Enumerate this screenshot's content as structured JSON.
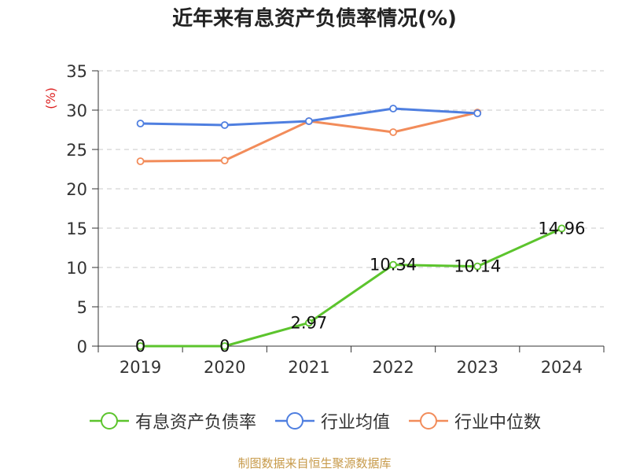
{
  "chart_data": {
    "type": "line",
    "title": "近年来有息资产负债率情况(%)",
    "ylabel": "(%)",
    "xlabel": "",
    "ylim": [
      0,
      35
    ],
    "yticks": [
      0,
      5,
      10,
      15,
      20,
      25,
      30,
      35
    ],
    "categories": [
      "2019",
      "2020",
      "2021",
      "2022",
      "2023",
      "2024"
    ],
    "grid": true,
    "legend_position": "bottom",
    "series": [
      {
        "name": "有息资产负债率",
        "color": "#5cc42d",
        "values": [
          0,
          0,
          2.97,
          10.34,
          10.14,
          14.96
        ],
        "labels": [
          "0",
          "0",
          "2.97",
          "10.34",
          "10.14",
          "14.96"
        ]
      },
      {
        "name": "行业均值",
        "color": "#4f7fe0",
        "values": [
          28.3,
          28.1,
          28.6,
          30.2,
          29.6,
          null
        ]
      },
      {
        "name": "行业中位数",
        "color": "#f28c5a",
        "values": [
          23.5,
          23.6,
          28.6,
          27.2,
          29.7,
          null
        ]
      }
    ]
  },
  "source": "制图数据来自恒生聚源数据库"
}
